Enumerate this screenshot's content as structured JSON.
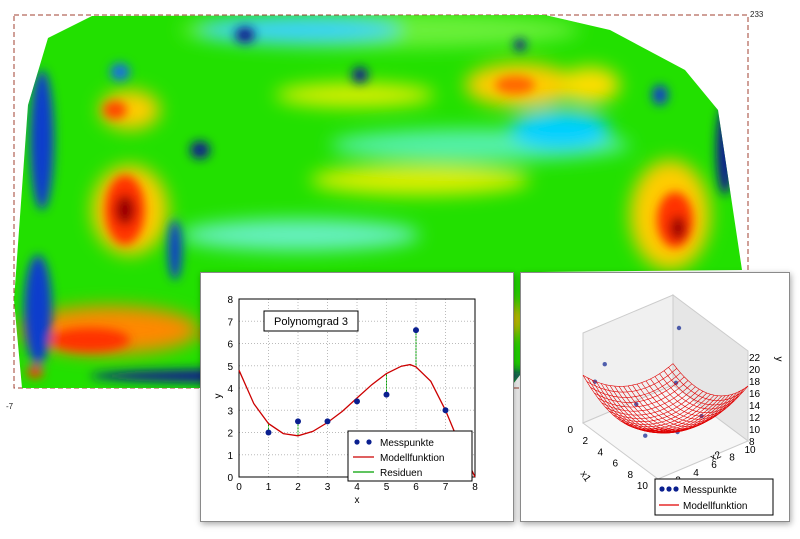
{
  "heatmap": {
    "corner_top_right": "233",
    "corner_bottom_left": "-7",
    "colors": {
      "low": "#00008b",
      "cool": "#00c8ff",
      "mid": "#22e000",
      "warm": "#ffdd00",
      "hot": "#ff3300",
      "max": "#990000",
      "frame": "#a04030"
    }
  },
  "chart_data": [
    {
      "type": "scatter",
      "title": "Polynomgrad 3",
      "xlabel": "x",
      "ylabel": "y",
      "xlim": [
        0,
        8
      ],
      "ylim": [
        0,
        8
      ],
      "xticks": [
        "0",
        "1",
        "2",
        "3",
        "4",
        "5",
        "6",
        "7",
        "8"
      ],
      "yticks": [
        "0",
        "1",
        "2",
        "3",
        "4",
        "5",
        "6",
        "7",
        "8"
      ],
      "grid": true,
      "legend_position": "bottom-right",
      "series": [
        {
          "name": "Messpunkte",
          "kind": "points",
          "color": "#0a1f8f",
          "x": [
            1,
            2,
            3,
            4,
            5,
            6,
            7
          ],
          "y": [
            2.0,
            2.5,
            2.5,
            3.4,
            3.7,
            6.6,
            3.0
          ]
        },
        {
          "name": "Modellfunktion",
          "kind": "curve",
          "color": "#cc0000",
          "x": [
            0,
            0.5,
            1,
            1.5,
            2,
            2.5,
            3,
            3.5,
            4,
            4.5,
            5,
            5.5,
            5.8,
            6,
            6.5,
            7,
            7.5,
            8
          ],
          "y": [
            4.8,
            3.3,
            2.4,
            1.95,
            1.85,
            2.05,
            2.45,
            2.95,
            3.55,
            4.15,
            4.65,
            4.98,
            5.05,
            4.95,
            4.3,
            3.0,
            1.4,
            0
          ]
        },
        {
          "name": "Residuen",
          "kind": "residuals",
          "color": "#00a000"
        }
      ]
    },
    {
      "type": "surface",
      "xlabel": "x1",
      "ylabel": "x2",
      "zlabel": "y",
      "x1ticks": [
        "0",
        "2",
        "4",
        "6",
        "8",
        "10"
      ],
      "x2ticks": [
        "2",
        "4",
        "6",
        "8",
        "10"
      ],
      "zticks": [
        "8",
        "10",
        "12",
        "14",
        "16",
        "18",
        "20",
        "22"
      ],
      "zlim": [
        8,
        22
      ],
      "legend_position": "bottom-left",
      "series": [
        {
          "name": "Messpunkte",
          "kind": "points",
          "color": "#0a1f8f"
        },
        {
          "name": "Modellfunktion",
          "kind": "mesh",
          "color": "#e00000"
        }
      ]
    }
  ]
}
